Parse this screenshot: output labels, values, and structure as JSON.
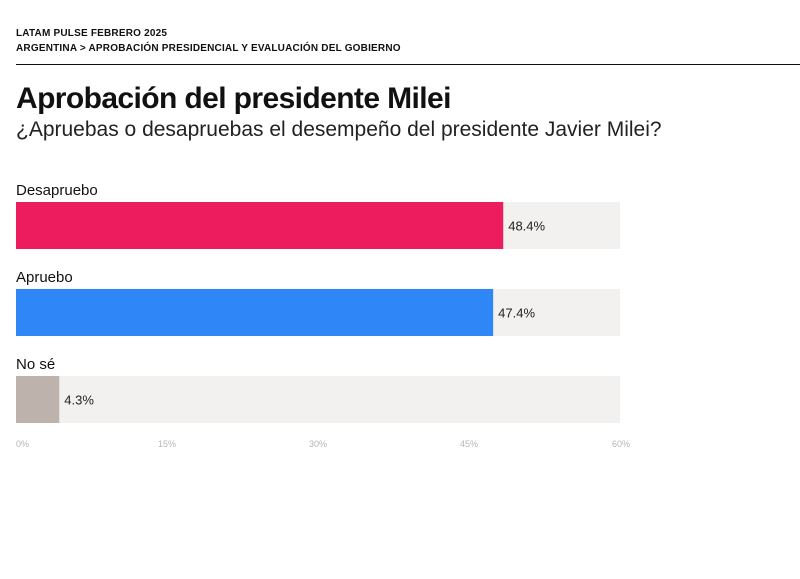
{
  "header": {
    "brand": "LATAM PULSE",
    "edition": "FEBRERO 2025",
    "breadcrumb": "ARGENTINA > APROBACIÓN PRESIDENCIAL Y EVALUACIÓN DEL GOBIERNO"
  },
  "title": "Aprobación del presidente Milei",
  "subtitle": "¿Apruebas o desapruebas el desempeño del presidente Javier Milei?",
  "chart_data": {
    "type": "bar",
    "orientation": "horizontal",
    "categories": [
      "Desapruebo",
      "Apruebo",
      "No sé"
    ],
    "values": [
      48.4,
      47.4,
      4.3
    ],
    "value_labels": [
      "48.4%",
      "47.4%",
      "4.3%"
    ],
    "colors": [
      "#ec1c5e",
      "#2f86f6",
      "#bdb3ac"
    ],
    "track_color": "#f2f1ef",
    "xlim": [
      0,
      60
    ],
    "ticks": [
      0,
      15,
      30,
      45,
      60
    ],
    "tick_labels": [
      "0%",
      "15%",
      "30%",
      "45%",
      "60%"
    ],
    "grid": false,
    "legend": "none"
  }
}
